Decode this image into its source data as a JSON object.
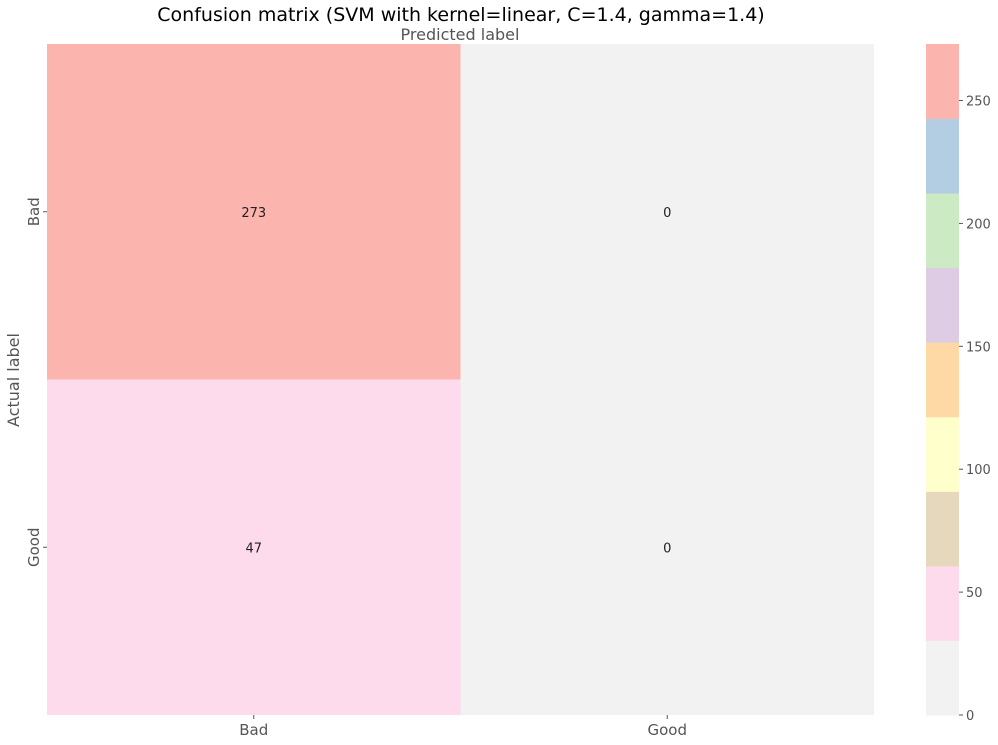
{
  "chart_data": {
    "type": "heatmap",
    "title": "Confusion matrix (SVM with kernel=linear, C=1.4, gamma=1.4)",
    "xlabel": "Predicted label",
    "ylabel": "Actual label",
    "x_categories": [
      "Bad",
      "Good"
    ],
    "y_categories": [
      "Bad",
      "Good"
    ],
    "matrix": [
      [
        273,
        0
      ],
      [
        47,
        0
      ]
    ],
    "colorbar": {
      "range": [
        0,
        273
      ],
      "ticks": [
        0,
        50,
        100,
        150,
        200,
        250
      ],
      "colormap": "Pastel1",
      "colors": [
        "#f2f2f2",
        "#fddaec",
        "#e5d8bd",
        "#ffffcc",
        "#fed9a6",
        "#decbe4",
        "#ccebc5",
        "#b3cde3",
        "#fbb4ae"
      ]
    },
    "grid": false
  }
}
